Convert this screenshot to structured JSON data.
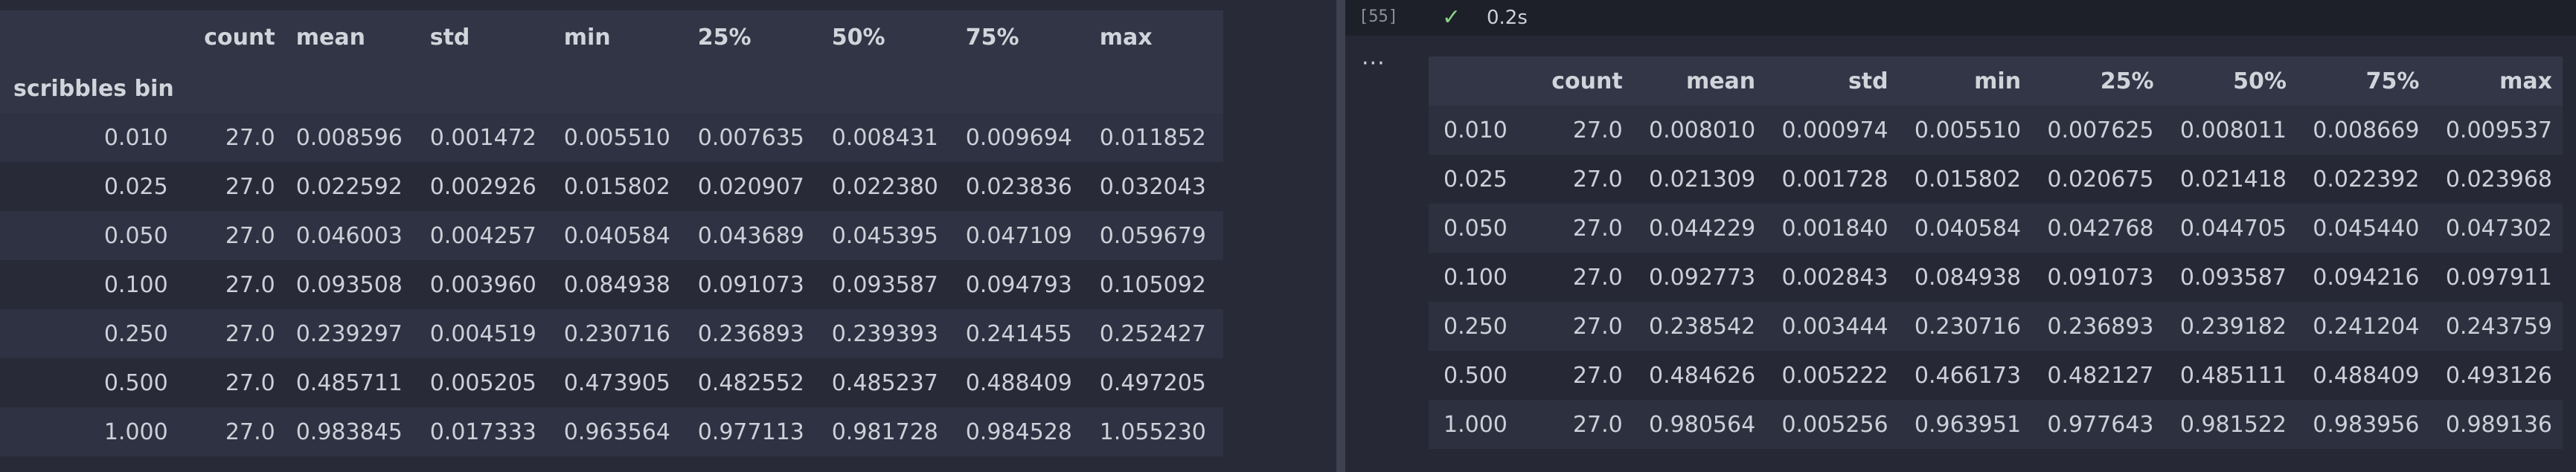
{
  "left_table": {
    "columns": [
      "count",
      "mean",
      "std",
      "min",
      "25%",
      "50%",
      "75%",
      "max"
    ],
    "index_name": "scribbles bin",
    "rows": [
      {
        "index": "0.010",
        "values": [
          "27.0",
          "0.008596",
          "0.001472",
          "0.005510",
          "0.007635",
          "0.008431",
          "0.009694",
          "0.011852"
        ]
      },
      {
        "index": "0.025",
        "values": [
          "27.0",
          "0.022592",
          "0.002926",
          "0.015802",
          "0.020907",
          "0.022380",
          "0.023836",
          "0.032043"
        ]
      },
      {
        "index": "0.050",
        "values": [
          "27.0",
          "0.046003",
          "0.004257",
          "0.040584",
          "0.043689",
          "0.045395",
          "0.047109",
          "0.059679"
        ]
      },
      {
        "index": "0.100",
        "values": [
          "27.0",
          "0.093508",
          "0.003960",
          "0.084938",
          "0.091073",
          "0.093587",
          "0.094793",
          "0.105092"
        ]
      },
      {
        "index": "0.250",
        "values": [
          "27.0",
          "0.239297",
          "0.004519",
          "0.230716",
          "0.236893",
          "0.239393",
          "0.241455",
          "0.252427"
        ]
      },
      {
        "index": "0.500",
        "values": [
          "27.0",
          "0.485711",
          "0.005205",
          "0.473905",
          "0.482552",
          "0.485237",
          "0.488409",
          "0.497205"
        ]
      },
      {
        "index": "1.000",
        "values": [
          "27.0",
          "0.983845",
          "0.017333",
          "0.963564",
          "0.977113",
          "0.981728",
          "0.984528",
          "1.055230"
        ]
      }
    ]
  },
  "right_cell": {
    "execution_count": "[55]",
    "status_icon": "check-icon",
    "exec_time": "0.2s",
    "more_label": "···",
    "columns": [
      "count",
      "mean",
      "std",
      "min",
      "25%",
      "50%",
      "75%",
      "max"
    ],
    "rows": [
      {
        "index": "0.010",
        "values": [
          "27.0",
          "0.008010",
          "0.000974",
          "0.005510",
          "0.007625",
          "0.008011",
          "0.008669",
          "0.009537"
        ]
      },
      {
        "index": "0.025",
        "values": [
          "27.0",
          "0.021309",
          "0.001728",
          "0.015802",
          "0.020675",
          "0.021418",
          "0.022392",
          "0.023968"
        ]
      },
      {
        "index": "0.050",
        "values": [
          "27.0",
          "0.044229",
          "0.001840",
          "0.040584",
          "0.042768",
          "0.044705",
          "0.045440",
          "0.047302"
        ]
      },
      {
        "index": "0.100",
        "values": [
          "27.0",
          "0.092773",
          "0.002843",
          "0.084938",
          "0.091073",
          "0.093587",
          "0.094216",
          "0.097911"
        ]
      },
      {
        "index": "0.250",
        "values": [
          "27.0",
          "0.238542",
          "0.003444",
          "0.230716",
          "0.236893",
          "0.239182",
          "0.241204",
          "0.243759"
        ]
      },
      {
        "index": "0.500",
        "values": [
          "27.0",
          "0.484626",
          "0.005222",
          "0.466173",
          "0.482127",
          "0.485111",
          "0.488409",
          "0.493126"
        ]
      },
      {
        "index": "1.000",
        "values": [
          "27.0",
          "0.980564",
          "0.005256",
          "0.963951",
          "0.977643",
          "0.981522",
          "0.983956",
          "0.989136"
        ]
      }
    ]
  },
  "colors": {
    "background": "#282a37",
    "check": "#89d185"
  }
}
